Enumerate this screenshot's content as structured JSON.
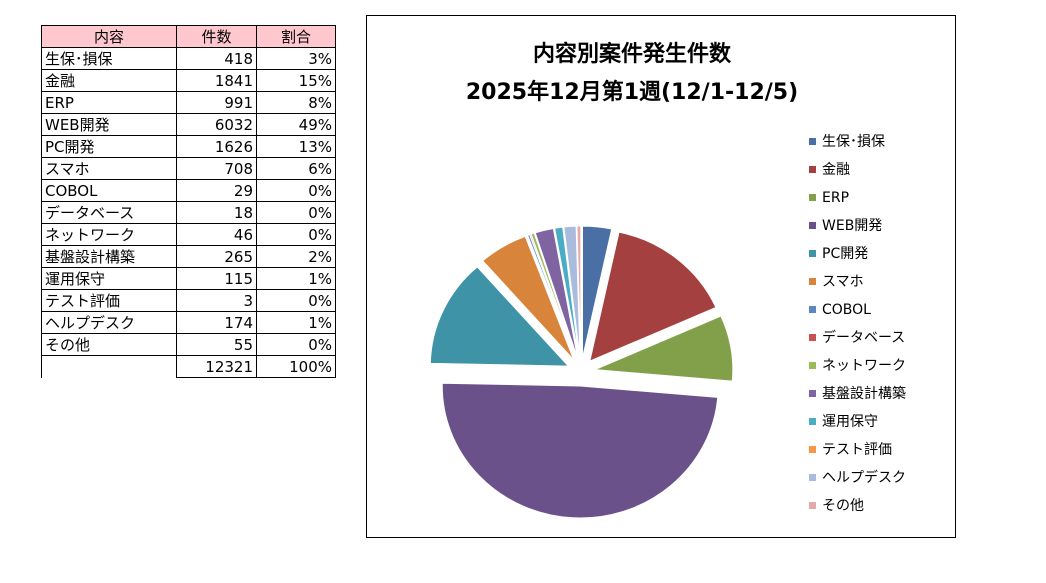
{
  "table": {
    "headers": [
      "内容",
      "件数",
      "割合"
    ],
    "rows": [
      {
        "label": "生保･損保",
        "count": "418",
        "pct": "3%"
      },
      {
        "label": "金融",
        "count": "1841",
        "pct": "15%"
      },
      {
        "label": "ERP",
        "count": "991",
        "pct": "8%"
      },
      {
        "label": "WEB開発",
        "count": "6032",
        "pct": "49%"
      },
      {
        "label": "PC開発",
        "count": "1626",
        "pct": "13%"
      },
      {
        "label": "スマホ",
        "count": "708",
        "pct": "6%"
      },
      {
        "label": "COBOL",
        "count": "29",
        "pct": "0%"
      },
      {
        "label": "データベース",
        "count": "18",
        "pct": "0%"
      },
      {
        "label": "ネットワーク",
        "count": "46",
        "pct": "0%"
      },
      {
        "label": "基盤設計構築",
        "count": "265",
        "pct": "2%"
      },
      {
        "label": "運用保守",
        "count": "115",
        "pct": "1%"
      },
      {
        "label": "テスト評価",
        "count": "3",
        "pct": "0%"
      },
      {
        "label": "ヘルプデスク",
        "count": "174",
        "pct": "1%"
      },
      {
        "label": "その他",
        "count": "55",
        "pct": "0%"
      }
    ],
    "total_label": "",
    "total_count": "12321",
    "total_pct": "100%"
  },
  "chart_data": {
    "type": "pie",
    "title": "内容別案件発生件数",
    "subtitle": "2025年12月第1週(12/1-12/5)",
    "legend_position": "right",
    "exploded": true,
    "categories": [
      "生保･損保",
      "金融",
      "ERP",
      "WEB開発",
      "PC開発",
      "スマホ",
      "COBOL",
      "データベース",
      "ネットワーク",
      "基盤設計構築",
      "運用保守",
      "テスト評価",
      "ヘルプデスク",
      "その他"
    ],
    "values": [
      418,
      1841,
      991,
      6032,
      1626,
      708,
      29,
      18,
      46,
      265,
      115,
      3,
      174,
      55
    ],
    "colors": [
      "#4a6fa5",
      "#a4403f",
      "#82a04a",
      "#6b5189",
      "#3f93a7",
      "#d8843b",
      "#5b86c2",
      "#c65351",
      "#9bbb59",
      "#8064a2",
      "#4bacc6",
      "#f79646",
      "#a9bcdd",
      "#e3aaa9"
    ]
  }
}
